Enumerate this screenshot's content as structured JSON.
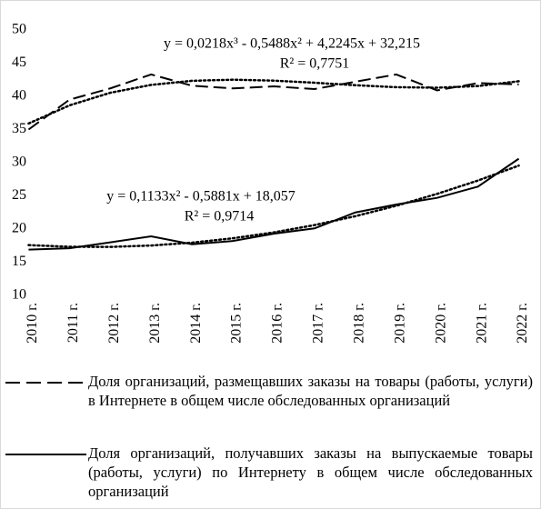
{
  "chart_data": {
    "type": "line",
    "categories": [
      "2010 г.",
      "2011 г.",
      "2012 г.",
      "2013 г.",
      "2014 г.",
      "2015 г.",
      "2016 г.",
      "2017 г.",
      "2018 г.",
      "2019 г.",
      "2020 г.",
      "2021 г.",
      "2022 г."
    ],
    "series": [
      {
        "name": "Доля организаций, размещавших заказы на товары (работы, услуги) в Интернете в общем числе обследованных организаций",
        "color": "#000000",
        "dash": "dashed",
        "values": [
          35.0,
          39.5,
          41.2,
          43.3,
          41.6,
          41.2,
          41.5,
          41.1,
          42.2,
          43.3,
          40.9,
          42.0,
          41.8
        ],
        "trend_values": [
          35.91,
          38.64,
          40.54,
          41.73,
          42.34,
          42.51,
          42.37,
          42.05,
          41.68,
          41.38,
          41.3,
          41.55,
          42.28
        ]
      },
      {
        "name": "Доля организаций, получавших заказы на выпускаемые товары (работы, услуги) по Интернету в общем числе обследованных организаций",
        "color": "#000000",
        "dash": "solid",
        "values": [
          16.9,
          17.1,
          18.0,
          18.9,
          17.7,
          18.2,
          19.3,
          20.1,
          22.5,
          23.7,
          24.7,
          26.4,
          30.6
        ],
        "trend_values": [
          17.58,
          17.33,
          17.31,
          17.52,
          17.95,
          18.61,
          19.49,
          20.6,
          21.94,
          23.51,
          25.3,
          27.31,
          29.56
        ]
      }
    ],
    "annotations": [
      "y = 0,0218x³ - 0,5488x² + 4,2245x + 32,215",
      "R² = 0,7751",
      "y = 0,1133x² - 0,5881x + 18,057",
      "R² = 0,9714"
    ],
    "ylim": [
      10,
      50
    ],
    "yticks": [
      10,
      15,
      20,
      25,
      30,
      35,
      40,
      45,
      50
    ],
    "grid": false,
    "legend": "bottom"
  }
}
